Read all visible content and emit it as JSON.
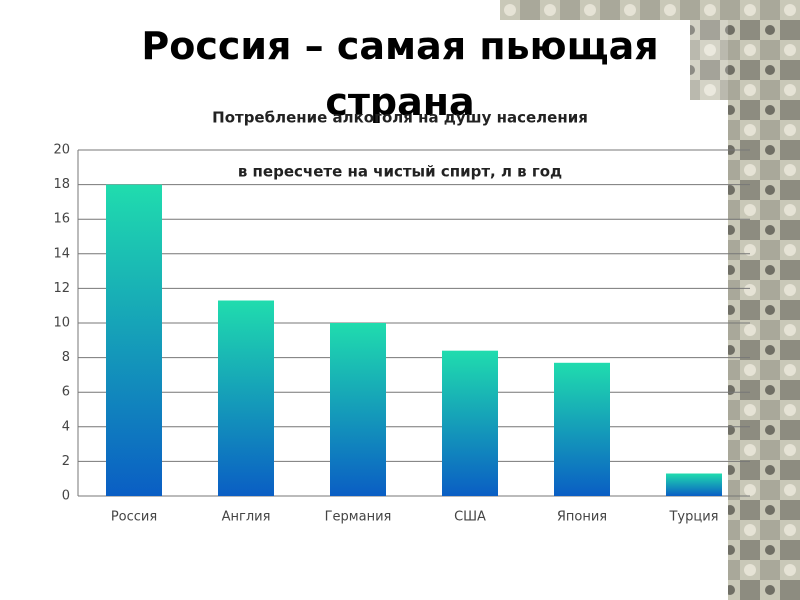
{
  "slide_title": "Россия – самая пьющая страна",
  "chart_data": {
    "type": "bar",
    "title": "Потребление алкоголя на душу населения",
    "subtitle": "в пересчете на чистый спирт, л в год",
    "categories": [
      "Россия",
      "Англия",
      "Германия",
      "США",
      "Япония",
      "Турция"
    ],
    "values": [
      18,
      11.3,
      10,
      8.4,
      7.7,
      1.3
    ],
    "gradient": [
      "#20dcae",
      "#0a5ec4"
    ],
    "ylim": [
      0,
      20
    ],
    "yticks": [
      0,
      2,
      4,
      6,
      8,
      10,
      12,
      14,
      16,
      18,
      20
    ],
    "grid": true
  }
}
